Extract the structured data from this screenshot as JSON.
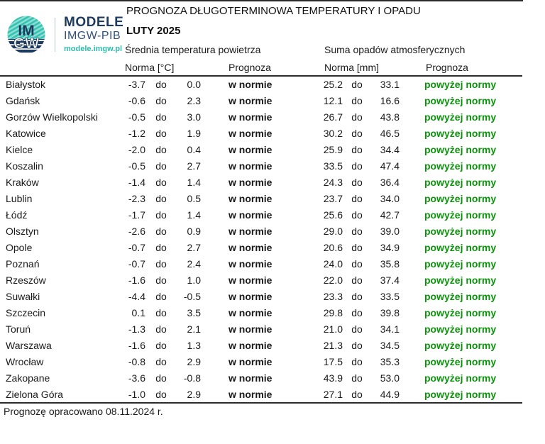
{
  "header": {
    "title": "PROGNOZA DŁUGOTERMINOWA TEMPERATURY I OPADU",
    "month": "LUTY 2025",
    "temp_group_label": "Średnia temperatura powietrza",
    "precip_group_label": "Suma opadów atmosferycznych",
    "temp_norma_label": "Norma [°C]",
    "temp_prognoza_label": "Prognoza",
    "precip_norma_label": "Norma [mm]",
    "precip_prognoza_label": "Prognoza"
  },
  "logo": {
    "circle_top_text": "IM",
    "circle_bottom_text": "GW",
    "line1": "MODELE",
    "line2": "IMGW-PIB",
    "line3": "modele.imgw.pl"
  },
  "colors": {
    "green": "#0a930a",
    "navy": "#1e3a5f",
    "teal": "#2fbcab",
    "line": "#2b2b2b"
  },
  "separator": "do",
  "rows": [
    {
      "city": "Białystok",
      "t_low": "-3.7",
      "t_high": "0.0",
      "t_forecast": "w normie",
      "p_low": "25.2",
      "p_high": "33.1",
      "p_forecast": "powyżej normy"
    },
    {
      "city": "Gdańsk",
      "t_low": "-0.6",
      "t_high": "2.3",
      "t_forecast": "w normie",
      "p_low": "12.1",
      "p_high": "16.6",
      "p_forecast": "powyżej normy"
    },
    {
      "city": "Gorzów Wielkopolski",
      "t_low": "-0.5",
      "t_high": "3.0",
      "t_forecast": "w normie",
      "p_low": "26.7",
      "p_high": "43.8",
      "p_forecast": "powyżej normy"
    },
    {
      "city": "Katowice",
      "t_low": "-1.2",
      "t_high": "1.9",
      "t_forecast": "w normie",
      "p_low": "30.2",
      "p_high": "46.5",
      "p_forecast": "powyżej normy"
    },
    {
      "city": "Kielce",
      "t_low": "-2.0",
      "t_high": "0.4",
      "t_forecast": "w normie",
      "p_low": "25.9",
      "p_high": "34.4",
      "p_forecast": "powyżej normy"
    },
    {
      "city": "Koszalin",
      "t_low": "-0.5",
      "t_high": "2.7",
      "t_forecast": "w normie",
      "p_low": "33.5",
      "p_high": "47.4",
      "p_forecast": "powyżej normy"
    },
    {
      "city": "Kraków",
      "t_low": "-1.4",
      "t_high": "1.4",
      "t_forecast": "w normie",
      "p_low": "24.3",
      "p_high": "36.4",
      "p_forecast": "powyżej normy"
    },
    {
      "city": "Lublin",
      "t_low": "-2.3",
      "t_high": "0.5",
      "t_forecast": "w normie",
      "p_low": "23.7",
      "p_high": "34.0",
      "p_forecast": "powyżej normy"
    },
    {
      "city": "Łódź",
      "t_low": "-1.7",
      "t_high": "1.4",
      "t_forecast": "w normie",
      "p_low": "25.6",
      "p_high": "42.7",
      "p_forecast": "powyżej normy"
    },
    {
      "city": "Olsztyn",
      "t_low": "-2.6",
      "t_high": "0.9",
      "t_forecast": "w normie",
      "p_low": "29.0",
      "p_high": "39.0",
      "p_forecast": "powyżej normy"
    },
    {
      "city": "Opole",
      "t_low": "-0.7",
      "t_high": "2.7",
      "t_forecast": "w normie",
      "p_low": "20.6",
      "p_high": "34.9",
      "p_forecast": "powyżej normy"
    },
    {
      "city": "Poznań",
      "t_low": "-0.7",
      "t_high": "2.4",
      "t_forecast": "w normie",
      "p_low": "24.0",
      "p_high": "35.8",
      "p_forecast": "powyżej normy"
    },
    {
      "city": "Rzeszów",
      "t_low": "-1.6",
      "t_high": "1.0",
      "t_forecast": "w normie",
      "p_low": "22.0",
      "p_high": "37.4",
      "p_forecast": "powyżej normy"
    },
    {
      "city": "Suwałki",
      "t_low": "-4.4",
      "t_high": "-0.5",
      "t_forecast": "w normie",
      "p_low": "23.3",
      "p_high": "33.5",
      "p_forecast": "powyżej normy"
    },
    {
      "city": "Szczecin",
      "t_low": "0.1",
      "t_high": "3.5",
      "t_forecast": "w normie",
      "p_low": "29.8",
      "p_high": "39.8",
      "p_forecast": "powyżej normy"
    },
    {
      "city": "Toruń",
      "t_low": "-1.3",
      "t_high": "2.1",
      "t_forecast": "w normie",
      "p_low": "21.0",
      "p_high": "34.1",
      "p_forecast": "powyżej normy"
    },
    {
      "city": "Warszawa",
      "t_low": "-1.6",
      "t_high": "1.3",
      "t_forecast": "w normie",
      "p_low": "21.3",
      "p_high": "34.5",
      "p_forecast": "powyżej normy"
    },
    {
      "city": "Wrocław",
      "t_low": "-0.8",
      "t_high": "2.9",
      "t_forecast": "w normie",
      "p_low": "17.5",
      "p_high": "35.3",
      "p_forecast": "powyżej normy"
    },
    {
      "city": "Zakopane",
      "t_low": "-3.6",
      "t_high": "-0.8",
      "t_forecast": "w normie",
      "p_low": "43.9",
      "p_high": "53.0",
      "p_forecast": "powyżej normy"
    },
    {
      "city": "Zielona Góra",
      "t_low": "-1.0",
      "t_high": "2.9",
      "t_forecast": "w normie",
      "p_low": "27.1",
      "p_high": "44.9",
      "p_forecast": "powyżej normy"
    }
  ],
  "footer": {
    "note": "Prognozę opracowano 08.11.2024 r."
  }
}
